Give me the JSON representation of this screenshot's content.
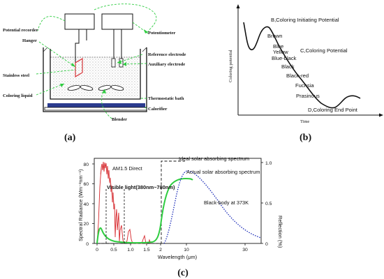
{
  "panel_a": {
    "tag": "(a)",
    "labels": {
      "potential_recorder": "Potential recorder",
      "potentiometer": "Potentiometer",
      "hanger": "Hanger",
      "reference_electrode": "Reference electrode",
      "stainless_steel": "Stainless steel",
      "auxiliary_electrode": "Auxiliary electrode",
      "coloring_liquid": "Coloring liquid",
      "thermostatic_bath": "Thermostatic bath",
      "calorifier": "Calorifier",
      "blender": "Blender"
    }
  },
  "panel_b": {
    "tag": "(b)",
    "ylabel": "Coloring potential",
    "xlabel": "Time",
    "labels": {
      "initiating": "B,Coloring Initiating Potential",
      "brown": "Brown",
      "blue": "Blue",
      "yellow": "Yellow",
      "blue_black": "Blue-black",
      "coloring_potential": "C,Coloring Potential",
      "black": "Black",
      "black_red": "Black-red",
      "fuchsia": "Fuchsia",
      "prasinous": "Prasinous",
      "end_point": "D,Coloring End Point"
    }
  },
  "panel_c": {
    "tag": "(c)",
    "ylabel_left": "Spectral Radiance (Wm⁻²nm⁻¹)",
    "ylabel_right": "Reflection (%)",
    "xlabel": "Wavelength (μm)",
    "left_ticks": [
      "0",
      "20",
      "40",
      "60",
      "80"
    ],
    "right_ticks": [
      "0",
      "0.5",
      "1.0"
    ],
    "x_ticks": [
      "0",
      "0.5",
      "1.0",
      "1.5",
      "2",
      "10",
      "30"
    ],
    "annotations": {
      "am15": "AM1.5 Direct",
      "visible": "Visible light(380nm~780nm)",
      "ideal": "Ideal solar absorbing spectrum",
      "actual": "Actual solar absorbing spectrum",
      "blackbody": "Black-body at 373K"
    }
  },
  "colors": {
    "green": "#2ecc40",
    "red": "#d6262b",
    "blue": "#1a2bb8",
    "black": "#111111",
    "navy_bar": "#2b3b8f"
  }
}
